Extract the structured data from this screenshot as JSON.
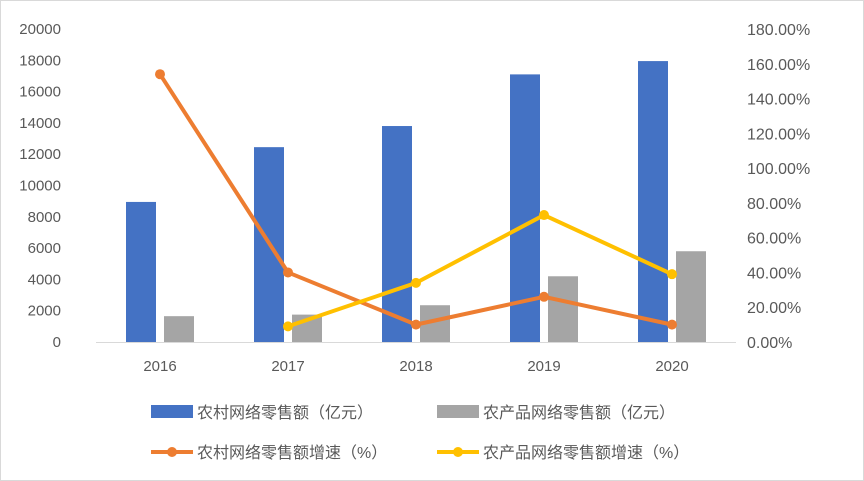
{
  "chart_data": {
    "type": "bar",
    "categories": [
      "2016",
      "2017",
      "2018",
      "2019",
      "2020"
    ],
    "y_left": {
      "ylim": [
        0,
        20000
      ],
      "ticks": [
        "20000",
        "18000",
        "16000",
        "14000",
        "12000",
        "10000",
        "8000",
        "6000",
        "4000",
        "2000",
        "0"
      ]
    },
    "y_right": {
      "ylim": [
        0,
        180
      ],
      "ticks": [
        "180.00%",
        "160.00%",
        "140.00%",
        "120.00%",
        "100.00%",
        "80.00%",
        "60.00%",
        "40.00%",
        "20.00%",
        "0.00%"
      ]
    },
    "bar_series": [
      {
        "name": "农村网络零售额（亿元）",
        "color": "#4472C4",
        "values": [
          8950,
          12450,
          13800,
          17100,
          17950
        ]
      },
      {
        "name": "农产品网络零售额（亿元）",
        "color": "#A5A5A5",
        "values": [
          1650,
          1750,
          2350,
          4200,
          5800
        ]
      }
    ],
    "line_series": [
      {
        "name": "农村网络零售额增速（%）",
        "color": "#ED7D31",
        "values": [
          154,
          40,
          10,
          26,
          10
        ]
      },
      {
        "name": "农产品网络零售额增速（%）",
        "color": "#FFC000",
        "values": [
          null,
          9,
          34,
          73,
          39
        ]
      }
    ],
    "grid": false,
    "legend_position": "bottom"
  }
}
